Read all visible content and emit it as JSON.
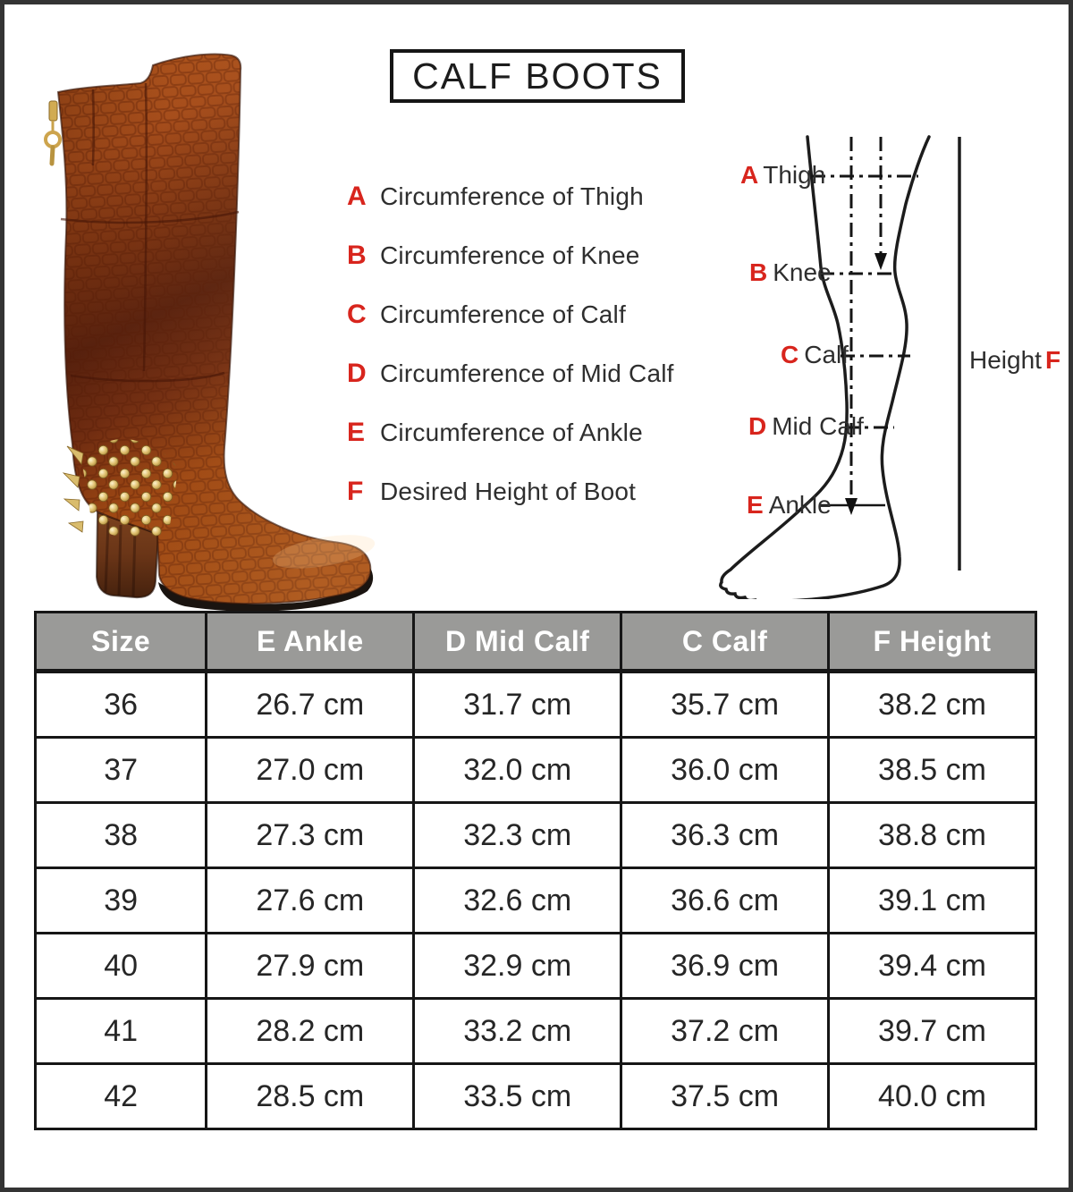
{
  "title": "CALF BOOTS",
  "legend": [
    {
      "letter": "A",
      "text": "Circumference of Thigh"
    },
    {
      "letter": "B",
      "text": "Circumference of Knee"
    },
    {
      "letter": "C",
      "text": "Circumference of Calf"
    },
    {
      "letter": "D",
      "text": "Circumference of Mid Calf"
    },
    {
      "letter": "E",
      "text": "Circumference of Ankle"
    },
    {
      "letter": "F",
      "text": "Desired Height of Boot"
    }
  ],
  "diagram": {
    "labels": [
      {
        "letter": "A",
        "text": "Thigh"
      },
      {
        "letter": "B",
        "text": "Knee"
      },
      {
        "letter": "C",
        "text": "Calf"
      },
      {
        "letter": "D",
        "text": "Mid Calf"
      },
      {
        "letter": "E",
        "text": "Ankle"
      }
    ],
    "height_text": "Height",
    "height_letter": "F"
  },
  "product_image": {
    "description": "tan crocodile-pattern knee-high boot with gold studs, block heel and back zipper"
  },
  "colors": {
    "accent_red": "#d8251d",
    "table_header_bg": "#9a9a98",
    "table_border": "#161616",
    "frame_border": "#343434",
    "boot_tan": "#b5591f",
    "boot_dark": "#5e2511",
    "stud_gold": "#d9ba67"
  },
  "chart_data": {
    "type": "table",
    "columns": [
      "Size",
      "E Ankle",
      "D Mid Calf",
      "C Calf",
      "F Height"
    ],
    "rows": [
      [
        "36",
        "26.7 cm",
        "31.7 cm",
        "35.7 cm",
        "38.2 cm"
      ],
      [
        "37",
        "27.0 cm",
        "32.0 cm",
        "36.0 cm",
        "38.5 cm"
      ],
      [
        "38",
        "27.3 cm",
        "32.3 cm",
        "36.3 cm",
        "38.8 cm"
      ],
      [
        "39",
        "27.6 cm",
        "32.6 cm",
        "36.6 cm",
        "39.1 cm"
      ],
      [
        "40",
        "27.9 cm",
        "32.9 cm",
        "36.9 cm",
        "39.4 cm"
      ],
      [
        "41",
        "28.2 cm",
        "33.2 cm",
        "37.2 cm",
        "39.7 cm"
      ],
      [
        "42",
        "28.5 cm",
        "33.5 cm",
        "37.5 cm",
        "40.0 cm"
      ]
    ]
  }
}
